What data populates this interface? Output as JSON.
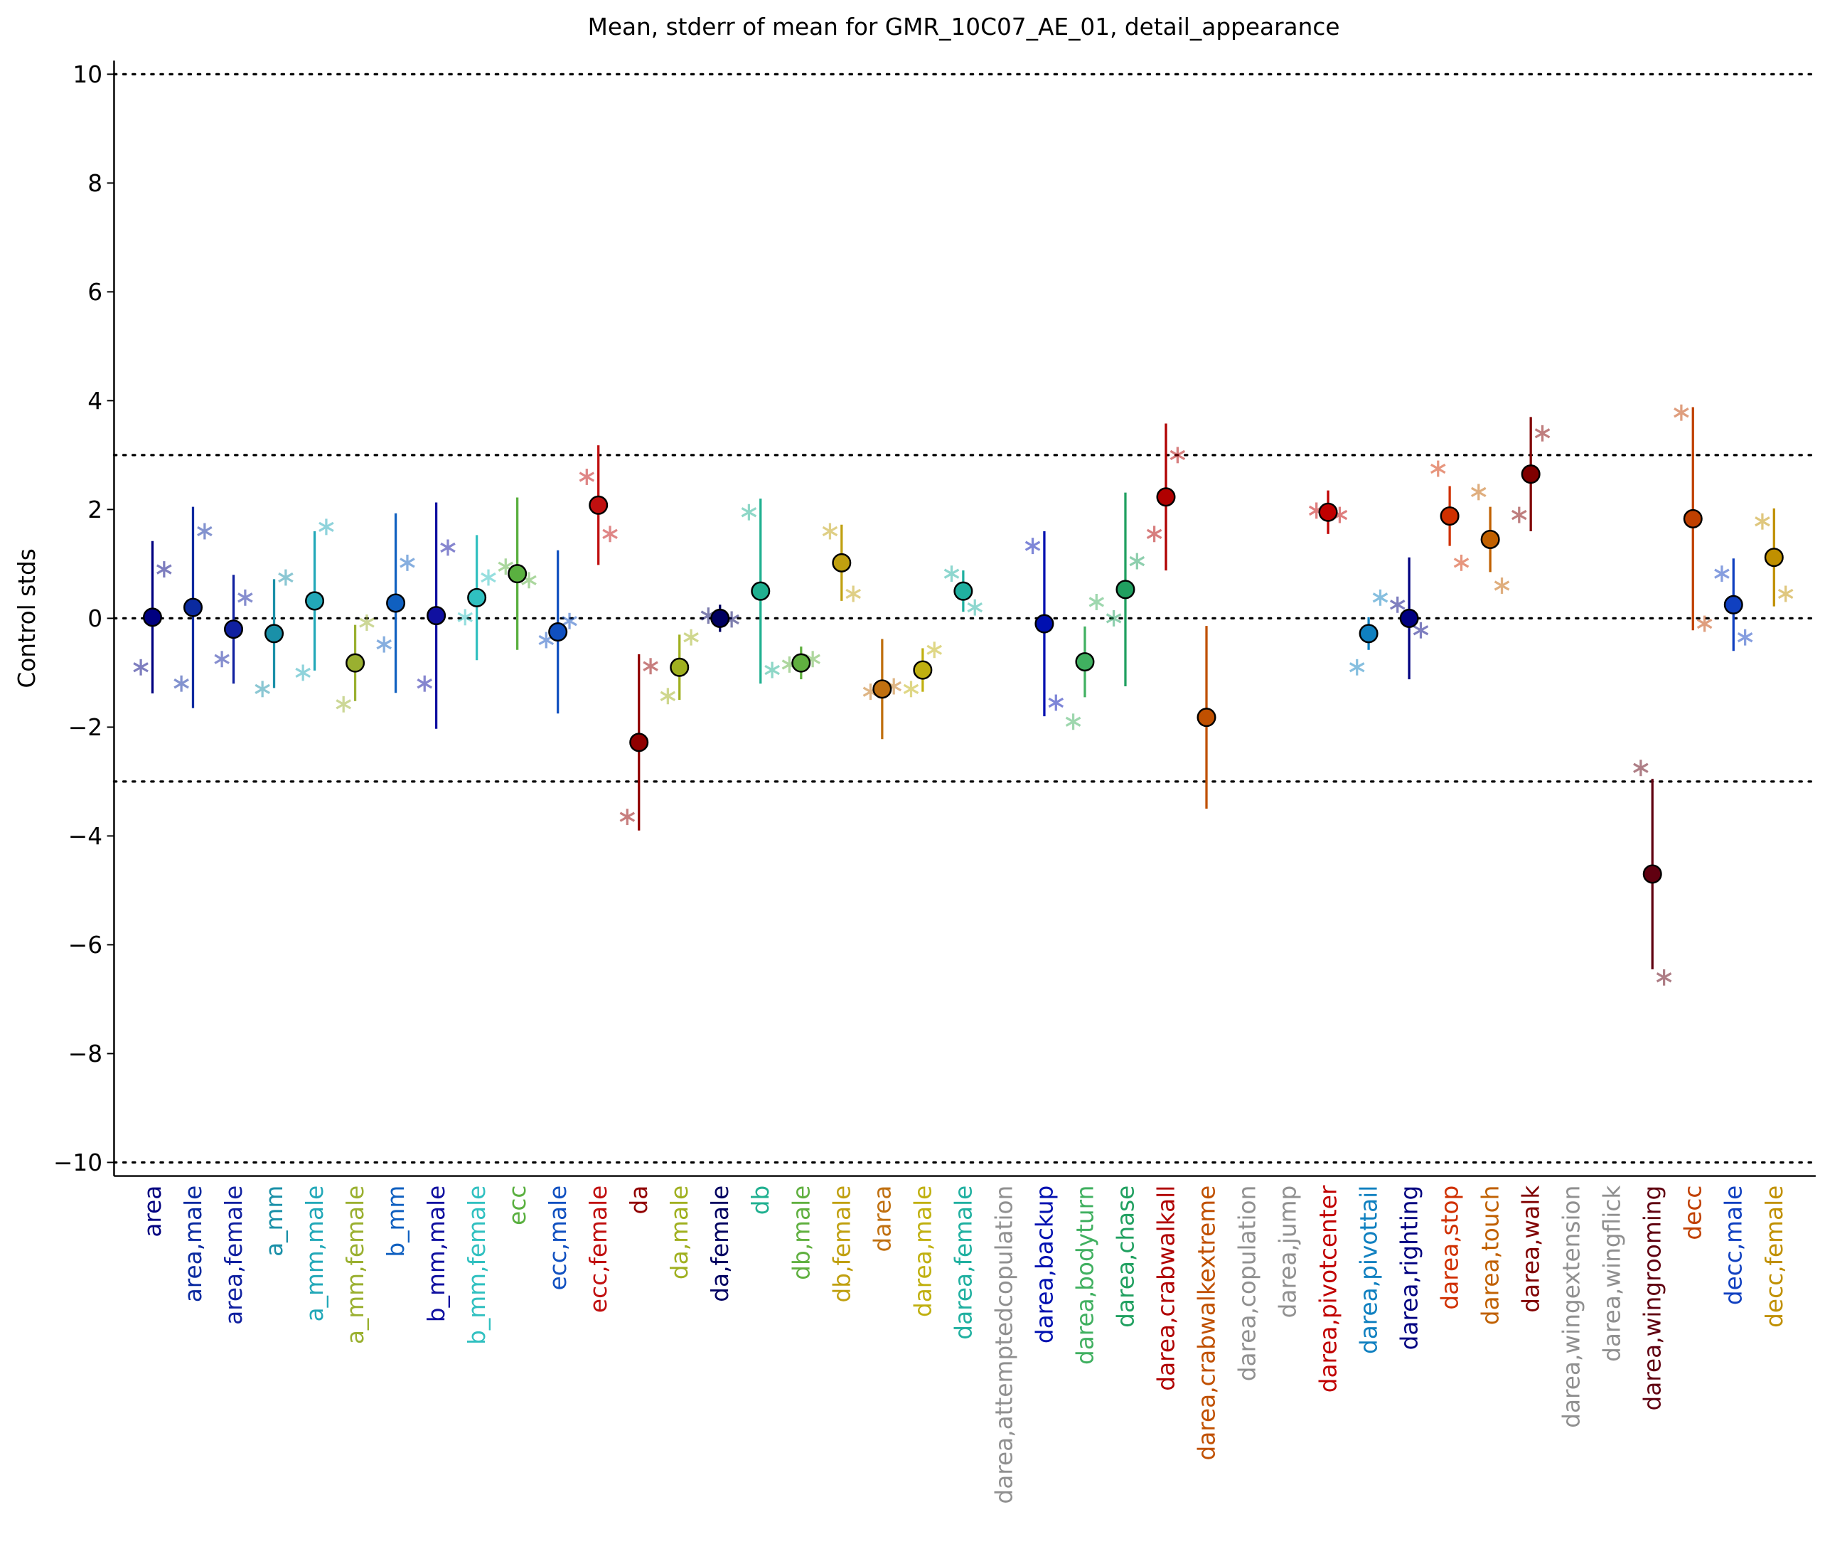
{
  "chart_data": {
    "type": "errorbar",
    "title": "Mean, stderr of mean for GMR_10C07_AE_01, detail_appearance",
    "ylabel": "Control stds",
    "categories": [
      "area",
      "area,male",
      "area,female",
      "a_mm",
      "a_mm,male",
      "a_mm,female",
      "b_mm",
      "b_mm,male",
      "b_mm,female",
      "ecc",
      "ecc,male",
      "ecc,female",
      "da",
      "da,male",
      "da,female",
      "db",
      "db,male",
      "db,female",
      "darea",
      "darea,male",
      "darea,female",
      "darea,attemptedcopulation",
      "darea,backup",
      "darea,bodyturn",
      "darea,chase",
      "darea,crabwalkall",
      "darea,crabwalkextreme",
      "darea,copulation",
      "darea,jump",
      "darea,pivotcenter",
      "darea,pivottail",
      "darea,righting",
      "darea,stop",
      "darea,touch",
      "darea,walk",
      "darea,wingextension",
      "darea,wingflick",
      "darea,wingrooming",
      "decc",
      "decc,male",
      "decc,female"
    ],
    "values": [
      0.02,
      0.2,
      -0.2,
      -0.28,
      0.32,
      -0.82,
      0.28,
      0.05,
      0.38,
      0.82,
      -0.25,
      2.08,
      -2.28,
      -0.9,
      0.0,
      0.5,
      -0.82,
      1.02,
      -1.3,
      -0.95,
      0.5,
      null,
      -0.1,
      -0.8,
      0.53,
      2.23,
      -1.82,
      null,
      null,
      1.95,
      -0.28,
      0.0,
      1.88,
      1.45,
      2.65,
      null,
      null,
      -4.7,
      1.83,
      0.25,
      1.12
    ],
    "errors": [
      1.4,
      1.85,
      1.0,
      1.0,
      1.28,
      0.7,
      1.65,
      2.08,
      1.15,
      1.4,
      1.5,
      1.1,
      1.62,
      0.6,
      0.25,
      1.7,
      0.3,
      0.7,
      0.92,
      0.4,
      0.38,
      null,
      1.7,
      0.65,
      1.78,
      1.35,
      1.68,
      null,
      null,
      0.4,
      0.3,
      1.12,
      0.55,
      0.6,
      1.05,
      null,
      null,
      1.75,
      2.05,
      0.85,
      0.9
    ],
    "points_left": [
      -0.9,
      -1.2,
      -0.75,
      -1.3,
      -1.0,
      -1.58,
      -0.48,
      -1.2,
      0.02,
      0.95,
      -0.4,
      2.6,
      -3.65,
      -1.43,
      0.05,
      1.95,
      -0.85,
      1.6,
      -1.35,
      -1.3,
      0.82,
      null,
      1.33,
      -1.9,
      0.0,
      1.55,
      null,
      null,
      null,
      1.98,
      -0.9,
      0.25,
      2.75,
      2.32,
      1.9,
      null,
      null,
      -2.75,
      3.78,
      0.82,
      1.78
    ],
    "points_right": [
      0.9,
      1.6,
      0.38,
      0.75,
      1.68,
      -0.08,
      1.02,
      1.3,
      0.75,
      0.7,
      -0.05,
      1.55,
      -0.88,
      -0.35,
      -0.02,
      -0.95,
      -0.75,
      0.45,
      -1.25,
      -0.58,
      0.2,
      null,
      -1.55,
      0.3,
      1.05,
      3.0,
      null,
      null,
      null,
      1.9,
      0.38,
      -0.22,
      1.02,
      0.6,
      3.4,
      null,
      null,
      -6.6,
      -0.1,
      -0.35,
      0.45
    ],
    "colors": [
      "#000080",
      "#0a2aa0",
      "#1020a0",
      "#1a90a8",
      "#22a8b8",
      "#9ab030",
      "#1060c0",
      "#1010a0",
      "#30c0c0",
      "#5ab040",
      "#1050c0",
      "#c01010",
      "#900000",
      "#a0b020",
      "#000060",
      "#20b090",
      "#60b040",
      "#c0a010",
      "#c07010",
      "#c0b010",
      "#20b0a0",
      "#909090",
      "#0010b0",
      "#40b060",
      "#20a060",
      "#b00000",
      "#c05000",
      "#909090",
      "#909090",
      "#c00000",
      "#1080c0",
      "#000080",
      "#d03000",
      "#c06000",
      "#800000",
      "#909090",
      "#909090",
      "#600010",
      "#c04000",
      "#1040c0",
      "#c09000"
    ],
    "ylim": [
      -10.25,
      10.25
    ],
    "yticks": [
      {
        "value": -10,
        "label": "−10"
      },
      {
        "value": -8,
        "label": "−8"
      },
      {
        "value": -6,
        "label": "−6"
      },
      {
        "value": -4,
        "label": "−4"
      },
      {
        "value": -2,
        "label": "−2"
      },
      0,
      2,
      4,
      6,
      8,
      10
    ],
    "reference_lines": [
      -10,
      -3,
      0,
      3,
      10
    ]
  }
}
